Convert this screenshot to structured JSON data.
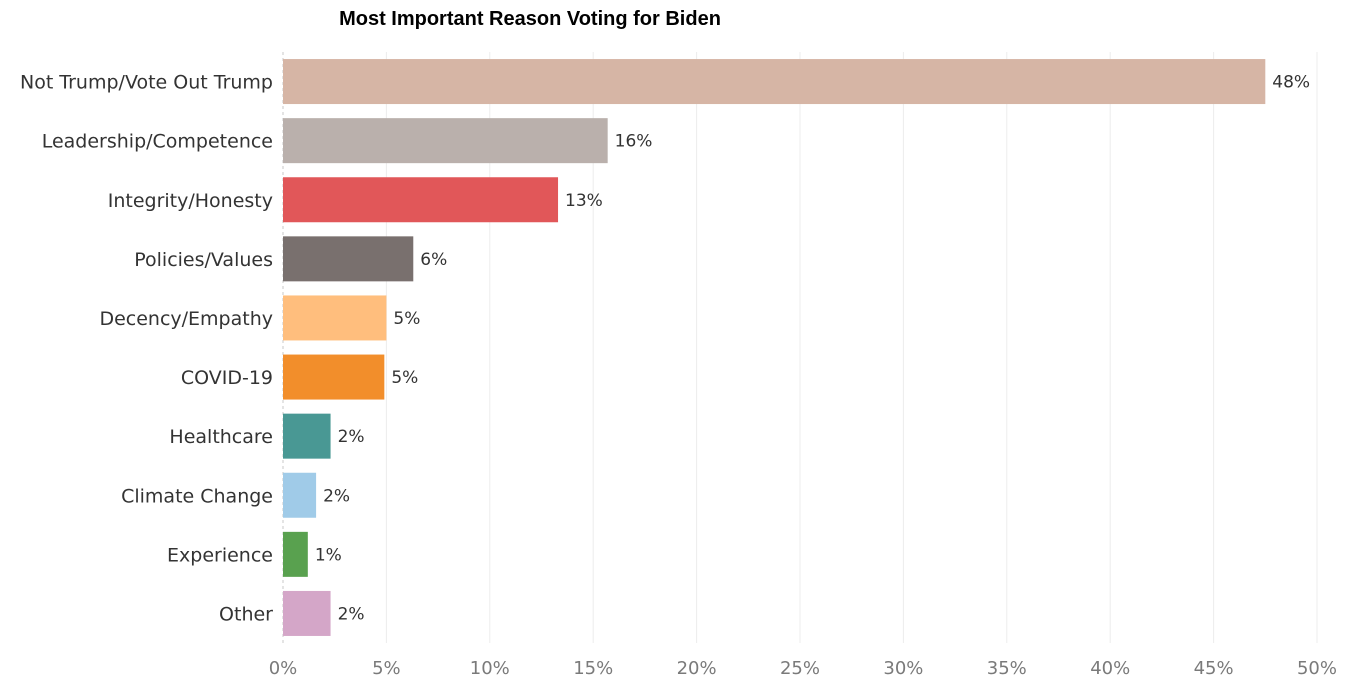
{
  "chart_data": {
    "type": "bar",
    "orientation": "horizontal",
    "title": "Most Important Reason Voting for Biden",
    "xlabel": "",
    "ylabel": "",
    "xlim": [
      0,
      50
    ],
    "x_ticks": [
      "0%",
      "5%",
      "10%",
      "15%",
      "20%",
      "25%",
      "30%",
      "35%",
      "40%",
      "45%",
      "50%"
    ],
    "grid": "vertical",
    "legend": "none",
    "categories": [
      "Not Trump/Vote Out Trump",
      "Leadership/Competence",
      "Integrity/Honesty",
      "Policies/Values",
      "Decency/Empathy",
      "COVID-19",
      "Healthcare",
      "Climate Change",
      "Experience",
      "Other"
    ],
    "values": [
      47.5,
      15.7,
      13.3,
      6.3,
      5.0,
      4.9,
      2.3,
      1.6,
      1.2,
      2.3
    ],
    "data_labels": [
      "48%",
      "16%",
      "13%",
      "6%",
      "5%",
      "5%",
      "2%",
      "2%",
      "1%",
      "2%"
    ],
    "colors": [
      "#d6b5a5",
      "#bab0ac",
      "#e15759",
      "#79706e",
      "#ffbe7d",
      "#f28e2b",
      "#499894",
      "#a0cbe8",
      "#59a14f",
      "#d4a6c8"
    ]
  }
}
